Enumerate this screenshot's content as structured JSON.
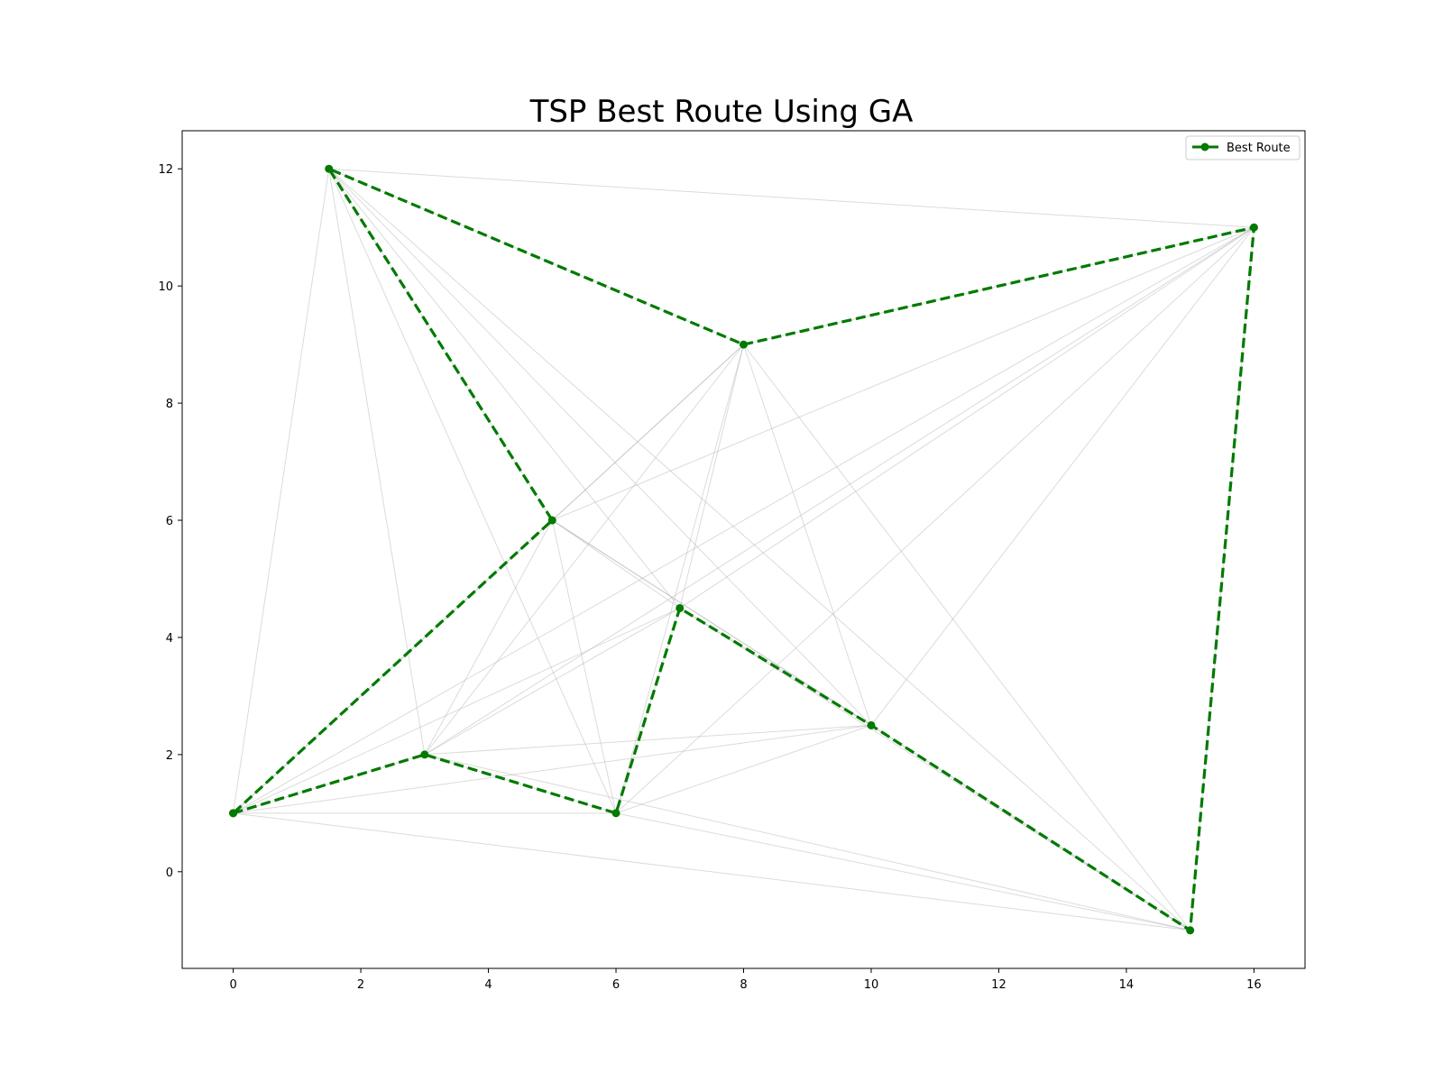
{
  "chart_data": {
    "type": "line",
    "title": "TSP Best Route Using GA",
    "xlabel": "",
    "ylabel": "",
    "xlim": [
      -0.8,
      16.8
    ],
    "ylim": [
      -1.65,
      12.65
    ],
    "xticks": [
      0,
      2,
      4,
      6,
      8,
      10,
      12,
      14,
      16
    ],
    "yticks": [
      0,
      2,
      4,
      6,
      8,
      10,
      12
    ],
    "grid": false,
    "legend_position": "top-right",
    "cities": [
      {
        "x": 0,
        "y": 1
      },
      {
        "x": 1.5,
        "y": 12
      },
      {
        "x": 3,
        "y": 2
      },
      {
        "x": 5,
        "y": 6
      },
      {
        "x": 6,
        "y": 1
      },
      {
        "x": 7,
        "y": 4.5
      },
      {
        "x": 8,
        "y": 9
      },
      {
        "x": 10,
        "y": 2.5
      },
      {
        "x": 15,
        "y": -1
      },
      {
        "x": 16,
        "y": 11
      }
    ],
    "background_edges": "all pairs of cities (faint gray)",
    "series": [
      {
        "name": "Best Route",
        "color": "#007a00",
        "style": "dashed",
        "marker": "circle",
        "x": [
          0,
          3,
          6,
          7,
          10,
          15,
          16,
          8,
          1.5,
          5,
          0
        ],
        "y": [
          1,
          2,
          1,
          4.5,
          2.5,
          -1,
          11,
          9,
          12,
          6,
          1
        ]
      }
    ]
  }
}
